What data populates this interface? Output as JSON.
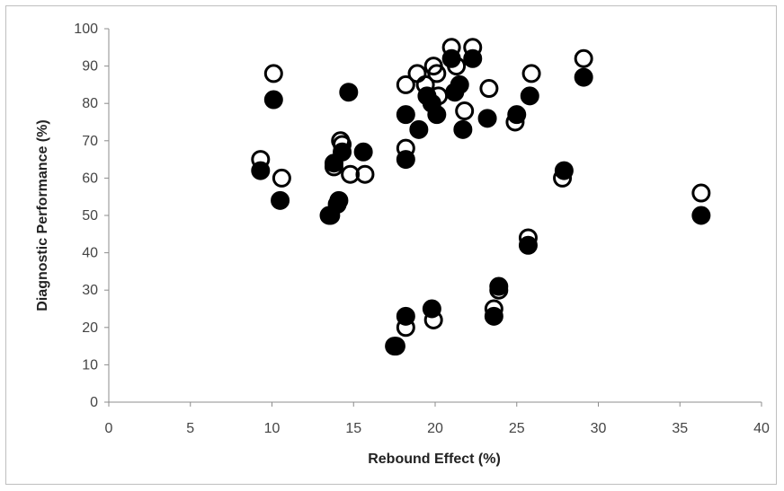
{
  "chart_data": {
    "type": "scatter",
    "xlabel": "Rebound Effect (%)",
    "ylabel": "Diagnostic Performance (%)",
    "xlim": [
      0,
      40
    ],
    "ylim": [
      0,
      100
    ],
    "x_ticks": [
      0,
      5,
      10,
      15,
      20,
      25,
      30,
      35,
      40
    ],
    "y_ticks": [
      0,
      10,
      20,
      30,
      40,
      50,
      60,
      70,
      80,
      90,
      100
    ],
    "grid": false,
    "legend": "none",
    "series": [
      {
        "marker": "filled-circle",
        "color": "#000000",
        "points": [
          {
            "x": 9.3,
            "y": 62
          },
          {
            "x": 10.1,
            "y": 81
          },
          {
            "x": 10.5,
            "y": 54
          },
          {
            "x": 13.5,
            "y": 50
          },
          {
            "x": 13.8,
            "y": 64
          },
          {
            "x": 14.0,
            "y": 53
          },
          {
            "x": 14.1,
            "y": 54
          },
          {
            "x": 14.3,
            "y": 67
          },
          {
            "x": 14.7,
            "y": 83
          },
          {
            "x": 15.6,
            "y": 67
          },
          {
            "x": 17.5,
            "y": 15
          },
          {
            "x": 18.2,
            "y": 23
          },
          {
            "x": 18.2,
            "y": 77
          },
          {
            "x": 18.2,
            "y": 65
          },
          {
            "x": 19.0,
            "y": 73
          },
          {
            "x": 19.5,
            "y": 82
          },
          {
            "x": 19.8,
            "y": 25
          },
          {
            "x": 19.8,
            "y": 80
          },
          {
            "x": 20.1,
            "y": 77
          },
          {
            "x": 21.0,
            "y": 92
          },
          {
            "x": 21.2,
            "y": 83
          },
          {
            "x": 21.5,
            "y": 85
          },
          {
            "x": 21.7,
            "y": 73
          },
          {
            "x": 22.3,
            "y": 92
          },
          {
            "x": 23.2,
            "y": 76
          },
          {
            "x": 23.6,
            "y": 23
          },
          {
            "x": 23.9,
            "y": 31
          },
          {
            "x": 25.0,
            "y": 77
          },
          {
            "x": 25.7,
            "y": 42
          },
          {
            "x": 25.8,
            "y": 82
          },
          {
            "x": 27.9,
            "y": 62
          },
          {
            "x": 29.1,
            "y": 87
          },
          {
            "x": 36.3,
            "y": 50
          }
        ]
      },
      {
        "marker": "open-circle",
        "color": "#000000",
        "points": [
          {
            "x": 9.3,
            "y": 65
          },
          {
            "x": 10.1,
            "y": 88
          },
          {
            "x": 10.6,
            "y": 60
          },
          {
            "x": 13.6,
            "y": 50
          },
          {
            "x": 13.8,
            "y": 63
          },
          {
            "x": 14.2,
            "y": 70
          },
          {
            "x": 14.3,
            "y": 69
          },
          {
            "x": 14.8,
            "y": 61
          },
          {
            "x": 15.7,
            "y": 61
          },
          {
            "x": 17.6,
            "y": 15
          },
          {
            "x": 18.2,
            "y": 20
          },
          {
            "x": 18.2,
            "y": 85
          },
          {
            "x": 18.2,
            "y": 68
          },
          {
            "x": 18.9,
            "y": 88
          },
          {
            "x": 19.4,
            "y": 85
          },
          {
            "x": 19.9,
            "y": 22
          },
          {
            "x": 19.9,
            "y": 90
          },
          {
            "x": 20.1,
            "y": 88
          },
          {
            "x": 20.2,
            "y": 82
          },
          {
            "x": 21.0,
            "y": 95
          },
          {
            "x": 21.3,
            "y": 90
          },
          {
            "x": 21.8,
            "y": 78
          },
          {
            "x": 22.3,
            "y": 95
          },
          {
            "x": 23.3,
            "y": 84
          },
          {
            "x": 23.6,
            "y": 25
          },
          {
            "x": 23.9,
            "y": 30
          },
          {
            "x": 24.9,
            "y": 75
          },
          {
            "x": 25.7,
            "y": 44
          },
          {
            "x": 25.9,
            "y": 88
          },
          {
            "x": 27.8,
            "y": 60
          },
          {
            "x": 29.1,
            "y": 92
          },
          {
            "x": 36.3,
            "y": 56
          }
        ]
      }
    ]
  }
}
